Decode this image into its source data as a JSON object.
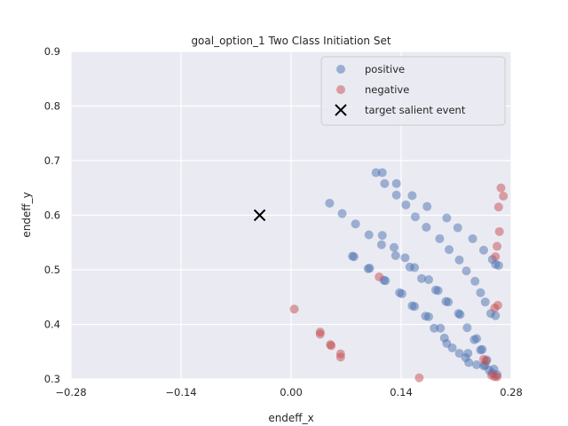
{
  "chart_data": {
    "type": "scatter",
    "title": "goal_option_1 Two Class Initiation Set",
    "xlabel": "endeff_x",
    "ylabel": "endeff_y",
    "xlim": [
      -0.28,
      0.28
    ],
    "ylim": [
      0.3,
      0.9
    ],
    "xticks": [
      "−0.28",
      "−0.14",
      "0.00",
      "0.14",
      "0.28"
    ],
    "xtick_values": [
      -0.28,
      -0.14,
      0.0,
      0.14,
      0.28
    ],
    "yticks": [
      "0.3",
      "0.4",
      "0.5",
      "0.6",
      "0.7",
      "0.8",
      "0.9"
    ],
    "ytick_values": [
      0.3,
      0.4,
      0.5,
      0.6,
      0.7,
      0.8,
      0.9
    ],
    "grid": true,
    "legend_position": "upper-right",
    "background_color": "#eaeaf2",
    "series": [
      {
        "name": "positive",
        "marker": "circle",
        "color": "#4c72b0",
        "points": [
          [
            0.108,
            0.678
          ],
          [
            0.116,
            0.678
          ],
          [
            0.119,
            0.658
          ],
          [
            0.134,
            0.658
          ],
          [
            0.154,
            0.636
          ],
          [
            0.134,
            0.637
          ],
          [
            0.146,
            0.619
          ],
          [
            0.173,
            0.616
          ],
          [
            0.198,
            0.595
          ],
          [
            0.158,
            0.597
          ],
          [
            0.049,
            0.622
          ],
          [
            0.065,
            0.603
          ],
          [
            0.082,
            0.584
          ],
          [
            0.099,
            0.564
          ],
          [
            0.116,
            0.563
          ],
          [
            0.115,
            0.546
          ],
          [
            0.131,
            0.541
          ],
          [
            0.133,
            0.526
          ],
          [
            0.145,
            0.522
          ],
          [
            0.151,
            0.505
          ],
          [
            0.157,
            0.504
          ],
          [
            0.166,
            0.484
          ],
          [
            0.175,
            0.482
          ],
          [
            0.184,
            0.463
          ],
          [
            0.187,
            0.462
          ],
          [
            0.197,
            0.442
          ],
          [
            0.2,
            0.441
          ],
          [
            0.213,
            0.42
          ],
          [
            0.215,
            0.418
          ],
          [
            0.078,
            0.525
          ],
          [
            0.08,
            0.524
          ],
          [
            0.098,
            0.502
          ],
          [
            0.1,
            0.503
          ],
          [
            0.118,
            0.481
          ],
          [
            0.12,
            0.48
          ],
          [
            0.138,
            0.458
          ],
          [
            0.141,
            0.456
          ],
          [
            0.154,
            0.434
          ],
          [
            0.157,
            0.433
          ],
          [
            0.171,
            0.415
          ],
          [
            0.175,
            0.414
          ],
          [
            0.182,
            0.393
          ],
          [
            0.19,
            0.393
          ],
          [
            0.195,
            0.375
          ],
          [
            0.198,
            0.365
          ],
          [
            0.205,
            0.357
          ],
          [
            0.214,
            0.347
          ],
          [
            0.222,
            0.339
          ],
          [
            0.226,
            0.33
          ],
          [
            0.236,
            0.326
          ],
          [
            0.247,
            0.325
          ],
          [
            0.252,
            0.316
          ],
          [
            0.256,
            0.311
          ],
          [
            0.172,
            0.578
          ],
          [
            0.189,
            0.557
          ],
          [
            0.201,
            0.537
          ],
          [
            0.214,
            0.518
          ],
          [
            0.223,
            0.498
          ],
          [
            0.234,
            0.479
          ],
          [
            0.241,
            0.458
          ],
          [
            0.247,
            0.441
          ],
          [
            0.254,
            0.42
          ],
          [
            0.26,
            0.416
          ],
          [
            0.212,
            0.577
          ],
          [
            0.231,
            0.557
          ],
          [
            0.245,
            0.536
          ],
          [
            0.256,
            0.519
          ],
          [
            0.264,
            0.508
          ],
          [
            0.26,
            0.51
          ],
          [
            0.224,
            0.394
          ],
          [
            0.236,
            0.374
          ],
          [
            0.243,
            0.354
          ],
          [
            0.249,
            0.335
          ],
          [
            0.258,
            0.318
          ],
          [
            0.262,
            0.308
          ],
          [
            0.233,
            0.372
          ],
          [
            0.225,
            0.347
          ],
          [
            0.241,
            0.353
          ],
          [
            0.245,
            0.324
          ]
        ]
      },
      {
        "name": "negative",
        "marker": "circle",
        "color": "#c44e52",
        "points": [
          [
            0.004,
            0.428
          ],
          [
            0.037,
            0.386
          ],
          [
            0.037,
            0.382
          ],
          [
            0.05,
            0.363
          ],
          [
            0.051,
            0.361
          ],
          [
            0.063,
            0.346
          ],
          [
            0.063,
            0.34
          ],
          [
            0.112,
            0.487
          ],
          [
            0.163,
            0.302
          ],
          [
            0.267,
            0.65
          ],
          [
            0.27,
            0.635
          ],
          [
            0.264,
            0.615
          ],
          [
            0.265,
            0.57
          ],
          [
            0.262,
            0.543
          ],
          [
            0.26,
            0.524
          ],
          [
            0.263,
            0.435
          ],
          [
            0.259,
            0.43
          ],
          [
            0.245,
            0.336
          ],
          [
            0.248,
            0.333
          ],
          [
            0.255,
            0.307
          ],
          [
            0.259,
            0.304
          ],
          [
            0.262,
            0.304
          ]
        ]
      },
      {
        "name": "target salient event",
        "marker": "x",
        "color": "#000000",
        "points": [
          [
            -0.04,
            0.6
          ]
        ]
      }
    ]
  }
}
